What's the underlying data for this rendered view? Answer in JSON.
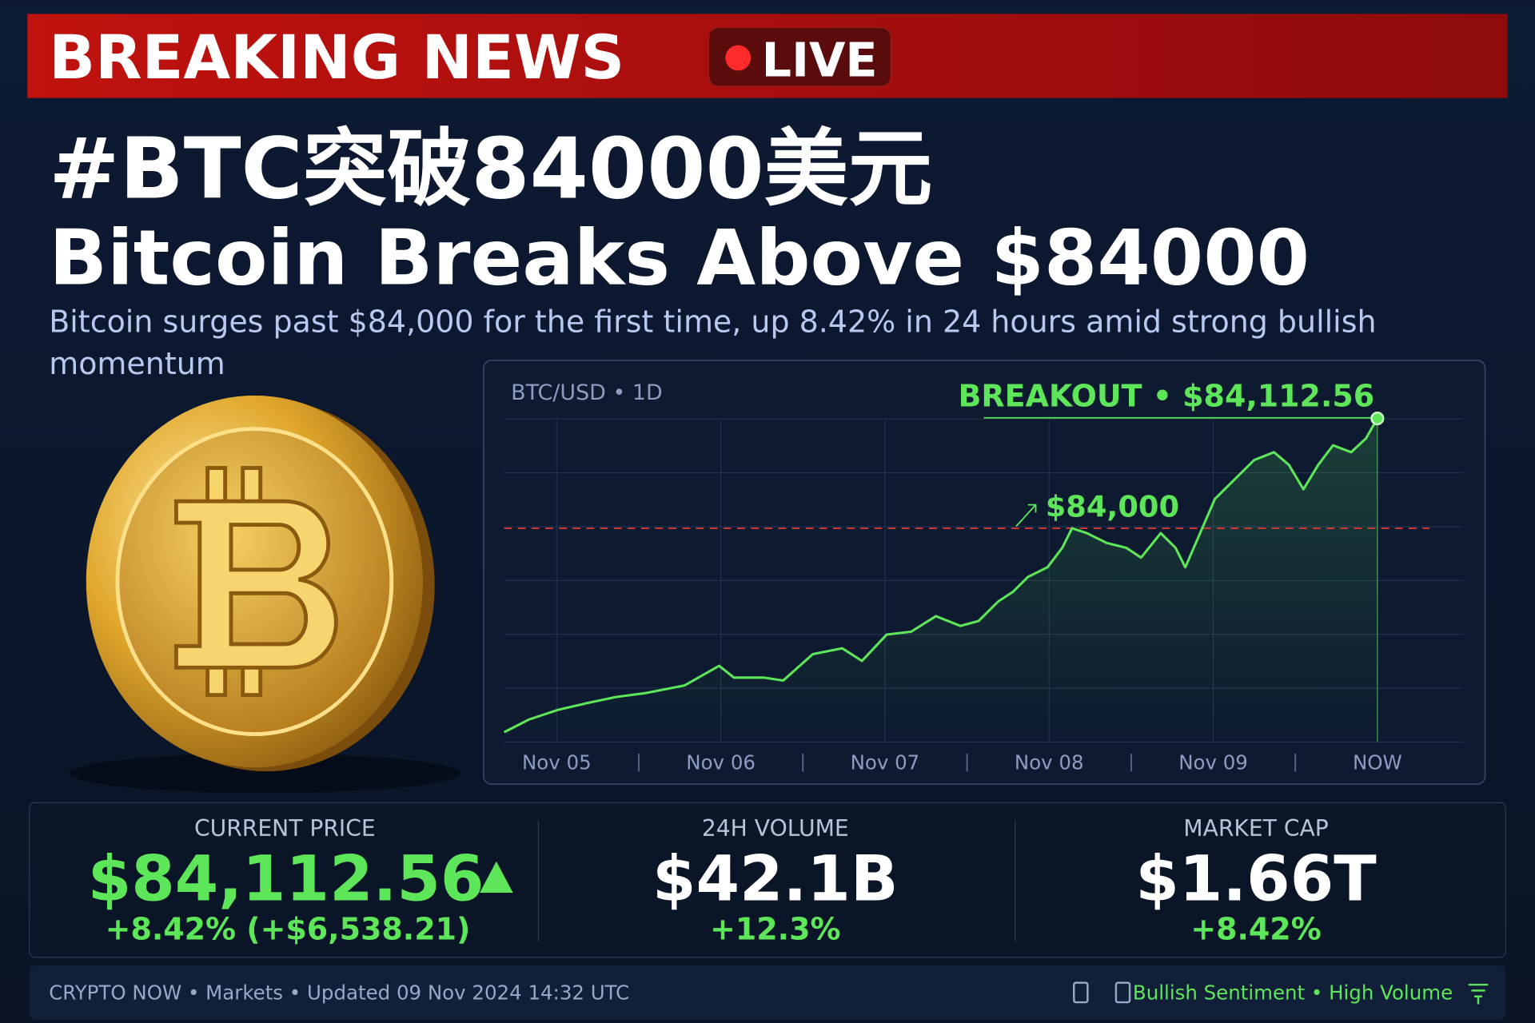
{
  "header": {
    "banner": "BREAKING NEWS",
    "live": "LIVE"
  },
  "headline": {
    "zh": "#BTC突破84000美元",
    "en": "Bitcoin Breaks Above $84000",
    "summary": "Bitcoin surges past $84,000 for the first time, up 8.42% in 24 hours amid strong bullish momentum"
  },
  "chart_data": {
    "type": "line",
    "title": "BTC/USD • 1D",
    "annotation": "BREAKOUT • $84,112.56",
    "x": [
      -0.32,
      -0.17,
      0.01,
      0.19,
      0.36,
      0.54,
      0.78,
      0.99,
      1.08,
      1.26,
      1.38,
      1.56,
      1.74,
      1.86,
      2.01,
      2.16,
      2.31,
      2.46,
      2.57,
      2.69,
      2.78,
      2.87,
      2.99,
      3.08,
      3.14,
      3.23,
      3.35,
      3.47,
      3.56,
      3.68,
      3.77,
      3.83,
      3.92,
      4.01,
      4.13,
      4.25,
      4.37,
      4.46,
      4.55,
      4.64,
      4.73,
      4.84,
      4.93,
      5.0
    ],
    "series": [
      {
        "color": "#5ee65a",
        "values": [
          83791,
          83804,
          83814,
          83821,
          83827,
          83831,
          83839,
          83859,
          83847,
          83847,
          83844,
          83871,
          83877,
          83864,
          83891,
          83894,
          83910,
          83900,
          83905,
          83925,
          83935,
          83950,
          83960,
          83980,
          84000,
          83995,
          83985,
          83980,
          83970,
          83995,
          83980,
          83960,
          83995,
          84030,
          84050,
          84070,
          84078,
          84065,
          84040,
          84065,
          84085,
          84078,
          84092,
          84112.56
        ]
      }
    ],
    "xlim": [
      -0.32,
      5.0
    ],
    "xticks": [
      {
        "value": 0,
        "label": "Nov 05"
      },
      {
        "value": 1,
        "label": "Nov 06"
      },
      {
        "value": 2,
        "label": "Nov 07"
      },
      {
        "value": 3,
        "label": "Nov 08"
      },
      {
        "value": 4,
        "label": "Nov 09"
      },
      {
        "value": 5,
        "label": "NOW"
      }
    ],
    "ylim": [
      83781,
      84120
    ],
    "reference_line": {
      "value": 84000,
      "label": "$84,000",
      "color": "#e53935"
    }
  },
  "stats": [
    {
      "label": "CURRENT PRICE",
      "value": "$84,112.56",
      "change": "+8.42% (+$6,538.21)"
    },
    {
      "label": "24H VOLUME",
      "value": "$42.1B",
      "change": "+12.3%"
    },
    {
      "label": "MARKET CAP",
      "value": "$1.66T",
      "change": "+8.42%"
    }
  ],
  "footer": {
    "source": "CRYPTO NOW • Markets • Updated 09 Nov 2024 14:32 UTC",
    "tags": "Bullish Sentiment • High Volume"
  }
}
